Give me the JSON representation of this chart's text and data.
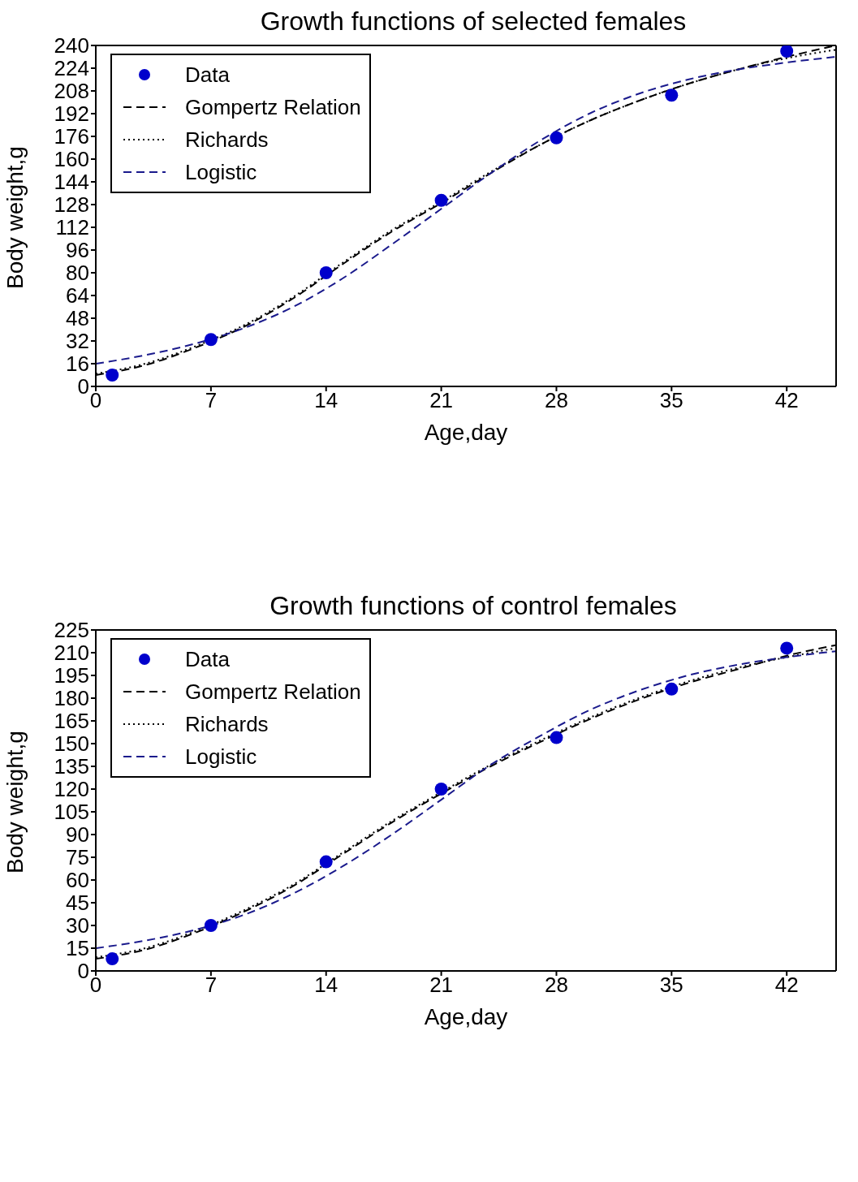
{
  "chart_data": [
    {
      "type": "line",
      "title": "Growth functions of selected females",
      "xlabel": "Age,day",
      "ylabel": "Body weight,g",
      "xlim": [
        0,
        45
      ],
      "xticks": [
        0,
        7,
        14,
        21,
        28,
        35,
        42
      ],
      "ylim": [
        0,
        240
      ],
      "yticks": [
        0,
        16,
        32,
        48,
        64,
        80,
        96,
        112,
        128,
        144,
        160,
        176,
        192,
        208,
        224,
        240
      ],
      "legend": "top left",
      "series": [
        {
          "name": "Data",
          "type": "scatter",
          "color": "#0000cc",
          "marker": "circle",
          "x": [
            1,
            7,
            14,
            21,
            28,
            35,
            42
          ],
          "values": [
            8,
            33,
            80,
            131,
            175,
            205,
            236
          ]
        },
        {
          "name": "Gompertz Relation",
          "type": "line",
          "color": "#000000",
          "marker": "none",
          "line_style": "dashed",
          "x": [
            0,
            3,
            6,
            9,
            12,
            15,
            18,
            21,
            24,
            27,
            30,
            33,
            36,
            39,
            42,
            45
          ],
          "values": [
            8,
            15,
            27,
            42,
            62,
            86,
            109,
            129,
            150,
            170,
            187,
            201,
            213,
            223,
            232,
            240
          ]
        },
        {
          "name": "Richards",
          "type": "line",
          "color": "#000000",
          "marker": "none",
          "line_style": "dotted",
          "x": [
            0,
            3,
            6,
            9,
            12,
            15,
            18,
            21,
            24,
            27,
            30,
            33,
            36,
            39,
            42,
            45
          ],
          "values": [
            9,
            16,
            28,
            43,
            63,
            87,
            110,
            130,
            151,
            170,
            187,
            201,
            213,
            223,
            231,
            237
          ]
        },
        {
          "name": "Logistic",
          "type": "line",
          "color": "#1a1a8c",
          "marker": "none",
          "line_style": "dashed",
          "x": [
            0,
            3,
            6,
            9,
            12,
            15,
            18,
            21,
            24,
            27,
            30,
            33,
            36,
            39,
            42,
            45
          ],
          "values": [
            16,
            22,
            30,
            41,
            56,
            76,
            100,
            125,
            150,
            173,
            192,
            206,
            216,
            223,
            228,
            232
          ]
        }
      ]
    },
    {
      "type": "line",
      "title": "Growth functions of control females",
      "xlabel": "Age,day",
      "ylabel": "Body weight,g",
      "xlim": [
        0,
        45
      ],
      "xticks": [
        0,
        7,
        14,
        21,
        28,
        35,
        42
      ],
      "ylim": [
        0,
        225
      ],
      "yticks": [
        0,
        15,
        30,
        45,
        60,
        75,
        90,
        105,
        120,
        135,
        150,
        165,
        180,
        195,
        210,
        225
      ],
      "legend": "top left",
      "series": [
        {
          "name": "Data",
          "type": "scatter",
          "color": "#0000cc",
          "marker": "circle",
          "x": [
            1,
            7,
            14,
            21,
            28,
            35,
            42
          ],
          "values": [
            8,
            30,
            72,
            120,
            154,
            186,
            213
          ]
        },
        {
          "name": "Gompertz Relation",
          "type": "line",
          "color": "#000000",
          "marker": "none",
          "line_style": "dashed",
          "x": [
            0,
            3,
            6,
            9,
            12,
            15,
            18,
            21,
            24,
            27,
            30,
            33,
            36,
            39,
            42,
            45
          ],
          "values": [
            8,
            14,
            25,
            39,
            56,
            77,
            98,
            117,
            135,
            151,
            166,
            179,
            190,
            199,
            208,
            215
          ]
        },
        {
          "name": "Richards",
          "type": "line",
          "color": "#000000",
          "marker": "none",
          "line_style": "dotted",
          "x": [
            0,
            3,
            6,
            9,
            12,
            15,
            18,
            21,
            24,
            27,
            30,
            33,
            36,
            39,
            42,
            45
          ],
          "values": [
            9,
            15,
            26,
            40,
            57,
            78,
            99,
            118,
            136,
            152,
            167,
            180,
            191,
            200,
            207,
            213
          ]
        },
        {
          "name": "Logistic",
          "type": "line",
          "color": "#1a1a8c",
          "marker": "none",
          "line_style": "dashed",
          "x": [
            0,
            3,
            6,
            9,
            12,
            15,
            18,
            21,
            24,
            27,
            30,
            33,
            36,
            39,
            42,
            45
          ],
          "values": [
            15,
            20,
            27,
            37,
            51,
            69,
            90,
            113,
            136,
            155,
            172,
            185,
            195,
            202,
            207,
            211
          ]
        }
      ]
    }
  ]
}
